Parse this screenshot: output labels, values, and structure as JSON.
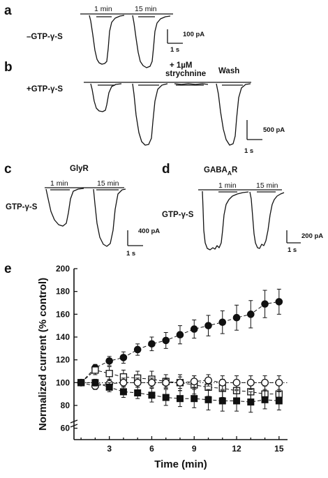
{
  "panel_a": {
    "letter": "a",
    "condition": "–GTP-γ-S",
    "time1": "1 min",
    "time2": "15 min",
    "scale_current": "100 pA",
    "scale_time": "1 s"
  },
  "panel_b": {
    "letter": "b",
    "condition": "+GTP-γ-S",
    "drug_line1": "+ 1µM",
    "drug_line2": "strychnine",
    "wash": "Wash",
    "scale_current": "500 pA",
    "scale_time": "1 s"
  },
  "panel_c": {
    "letter": "c",
    "title": "GlyR",
    "condition": "GTP-γ-S",
    "time1": "1 min",
    "time2": "15 min",
    "scale_current": "400 pA",
    "scale_time": "1 s"
  },
  "panel_d": {
    "letter": "d",
    "title_main": "GABA",
    "title_sub": "A",
    "title_end": "R",
    "condition": "GTP-γ-S",
    "time1": "1 min",
    "time2": "15 min",
    "scale_current": "200 pA",
    "scale_time": "1 s"
  },
  "panel_e": {
    "letter": "e",
    "chart_data": {
      "type": "scatter",
      "xlabel": "Time (min)",
      "ylabel": "Normalized current (% control)",
      "xlim": [
        0.5,
        15.6
      ],
      "ylim": [
        50,
        200
      ],
      "xticks": [
        3,
        6,
        9,
        12,
        15
      ],
      "yticks": [
        60,
        80,
        100,
        120,
        140,
        160,
        180,
        200
      ],
      "reference_line": 100,
      "series": [
        {
          "marker": "filled-circle",
          "x": [
            1,
            2,
            3,
            4,
            5,
            6,
            7,
            8,
            9,
            10,
            11,
            12,
            13,
            14,
            15
          ],
          "y": [
            100,
            113,
            119,
            122,
            129,
            134,
            137,
            142,
            147,
            150,
            153,
            157,
            160,
            169,
            171
          ],
          "err": [
            2,
            3,
            4,
            5,
            5,
            6,
            7,
            8,
            8,
            9,
            10,
            11,
            12,
            12,
            11
          ]
        },
        {
          "marker": "open-square",
          "x": [
            1,
            2,
            3,
            4,
            5,
            6,
            7,
            8,
            9,
            10,
            11,
            12,
            13,
            14,
            15
          ],
          "y": [
            100,
            111,
            108,
            105,
            104,
            103,
            101,
            100,
            98,
            96,
            95,
            93,
            92,
            90,
            90
          ],
          "err": [
            2,
            4,
            6,
            6,
            6,
            7,
            6,
            7,
            8,
            8,
            8,
            8,
            8,
            7,
            8
          ]
        },
        {
          "marker": "open-circle",
          "x": [
            1,
            2,
            3,
            4,
            5,
            6,
            7,
            8,
            9,
            10,
            11,
            12,
            13,
            14,
            15
          ],
          "y": [
            100,
            97,
            99,
            100,
            100,
            100,
            100,
            100,
            101,
            102,
            100,
            100,
            100,
            100,
            100
          ],
          "err": [
            2,
            3,
            4,
            4,
            4,
            4,
            4,
            5,
            5,
            5,
            6,
            6,
            6,
            6,
            6
          ]
        },
        {
          "marker": "filled-square",
          "x": [
            1,
            2,
            3,
            4,
            5,
            6,
            7,
            8,
            9,
            10,
            11,
            12,
            13,
            14,
            15
          ],
          "y": [
            100,
            100,
            96,
            92,
            91,
            89,
            87,
            86,
            86,
            85,
            84,
            84,
            83,
            85,
            84
          ],
          "err": [
            2,
            3,
            4,
            5,
            5,
            6,
            7,
            7,
            8,
            9,
            9,
            9,
            9,
            8,
            8
          ]
        }
      ]
    }
  }
}
